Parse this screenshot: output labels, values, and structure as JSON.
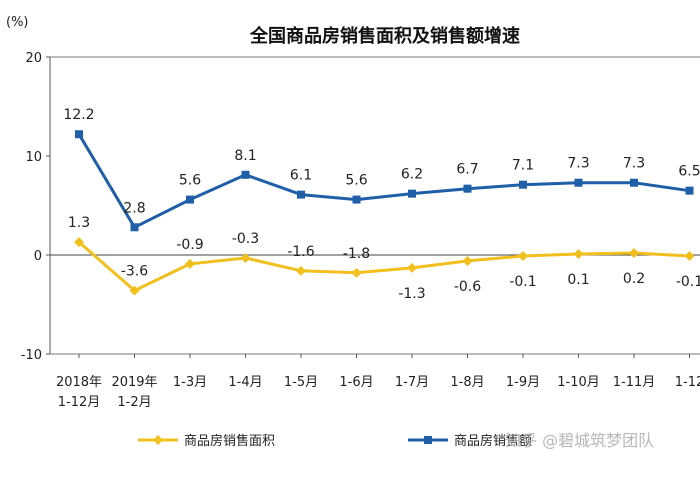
{
  "chart_data": {
    "type": "line",
    "title": "全国商品房销售面积及销售额增速",
    "unit_label": "(%)",
    "ylim": [
      -10,
      20
    ],
    "yticks": [
      "20",
      "10",
      "0",
      "-10"
    ],
    "categories": [
      [
        "2018年",
        "1-12月"
      ],
      [
        "2019年",
        "1-2月"
      ],
      [
        "1-3月"
      ],
      [
        "1-4月"
      ],
      [
        "1-5月"
      ],
      [
        "1-6月"
      ],
      [
        "1-7月"
      ],
      [
        "1-8月"
      ],
      [
        "1-9月"
      ],
      [
        "1-10月"
      ],
      [
        "1-11月"
      ],
      [
        "1-12"
      ]
    ],
    "series": [
      {
        "name": "商品房销售面积",
        "color": "#F2C01E",
        "marker": "diamond",
        "values": [
          1.3,
          -3.6,
          -0.9,
          -0.3,
          -1.6,
          -1.8,
          -1.3,
          -0.6,
          -0.1,
          0.1,
          0.2,
          -0.1
        ],
        "labels": [
          "1.3",
          "-3.6",
          "-0.9",
          "-0.3",
          "-1.6",
          "-1.8",
          "-1.3",
          "-0.6",
          "-0.1",
          "0.1",
          "0.2",
          "-0.1"
        ]
      },
      {
        "name": "商品房销售额",
        "color": "#1F5FA8",
        "marker": "square",
        "values": [
          12.2,
          2.8,
          5.6,
          8.1,
          6.1,
          5.6,
          6.2,
          6.7,
          7.1,
          7.3,
          7.3,
          6.5
        ],
        "labels": [
          "12.2",
          "2.8",
          "5.6",
          "8.1",
          "6.1",
          "5.6",
          "6.2",
          "6.7",
          "7.1",
          "7.3",
          "7.3",
          "6.5"
        ]
      }
    ],
    "legend_position": "bottom",
    "watermark": "知乎 @碧城筑梦团队"
  }
}
